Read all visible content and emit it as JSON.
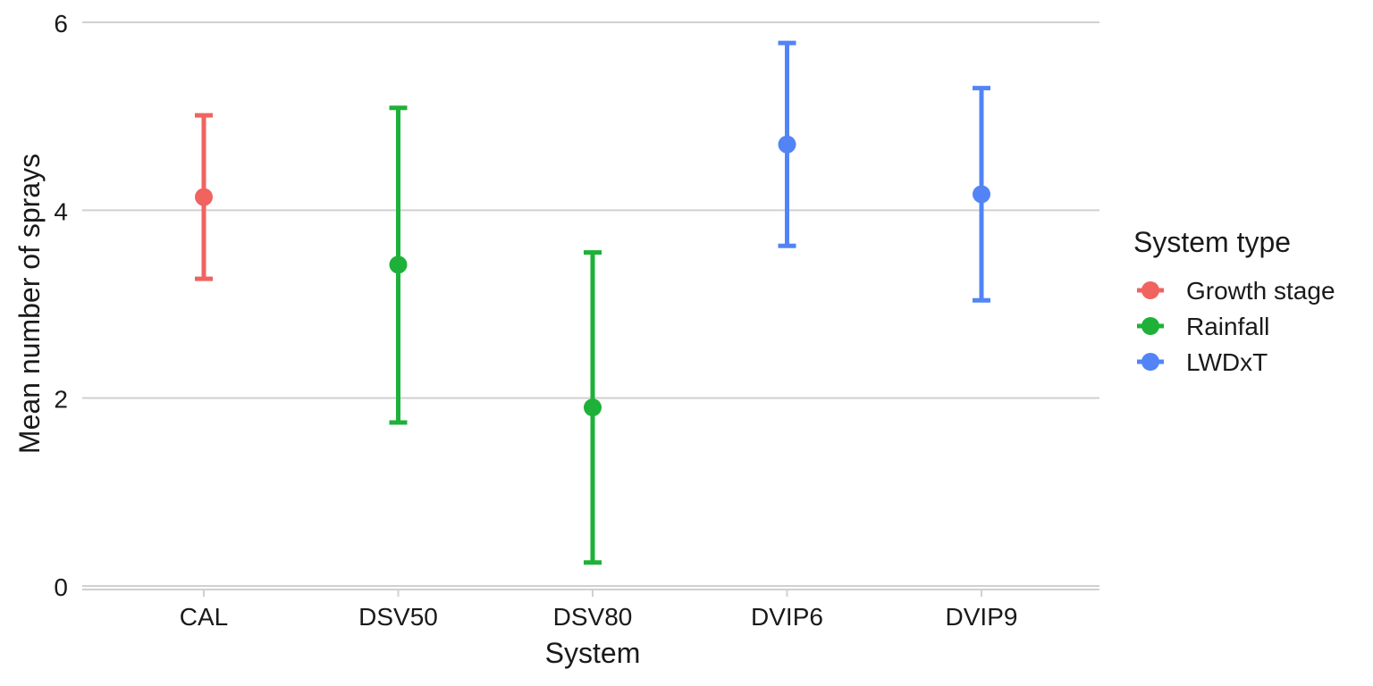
{
  "chart_data": {
    "type": "scatter",
    "xlabel": "System",
    "ylabel": "Mean number of sprays",
    "ylim": [
      0,
      6
    ],
    "yticks": [
      0,
      2,
      4,
      6
    ],
    "grid": "horizontal",
    "legend_placement": "right",
    "legend_title": "System type",
    "categories": [
      "CAL",
      "DSV50",
      "DSV80",
      "DVIP6",
      "DVIP9"
    ],
    "series": [
      {
        "name": "Growth stage",
        "color": "#F0635F",
        "points": [
          {
            "x": "CAL",
            "y": 4.14,
            "ymin": 3.27,
            "ymax": 5.01
          }
        ]
      },
      {
        "name": "Rainfall",
        "color": "#1EB139",
        "points": [
          {
            "x": "DSV50",
            "y": 3.42,
            "ymin": 1.74,
            "ymax": 5.09
          },
          {
            "x": "DSV80",
            "y": 1.9,
            "ymin": 0.25,
            "ymax": 3.55
          }
        ]
      },
      {
        "name": "LWDxT",
        "color": "#5384F5",
        "points": [
          {
            "x": "DVIP6",
            "y": 4.7,
            "ymin": 3.62,
            "ymax": 5.78
          },
          {
            "x": "DVIP9",
            "y": 4.17,
            "ymin": 3.04,
            "ymax": 5.3
          }
        ]
      }
    ]
  }
}
